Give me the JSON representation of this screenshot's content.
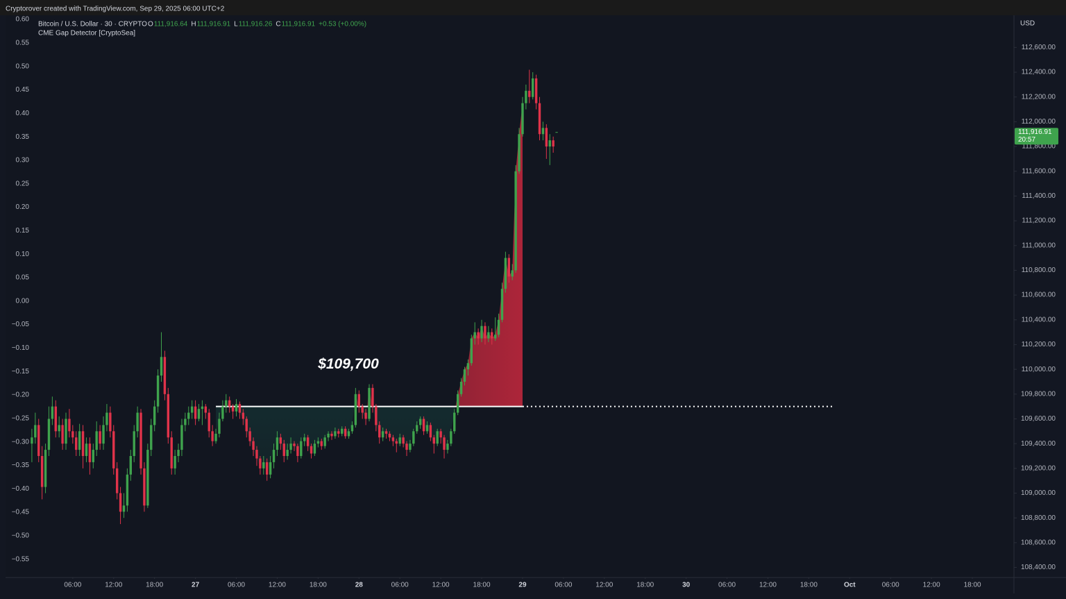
{
  "header": "Cryptorover created with TradingView.com, Sep 29, 2025 06:00 UTC+2",
  "chart_data": {
    "type": "candlestick",
    "symbol": "Bitcoin / U.S. Dollar · 30 · CRYPTO",
    "indicator": "CME Gap Detector [CryptoSea]",
    "ohlc_legend": [
      {
        "key": "O",
        "text": "111,916.64"
      },
      {
        "key": "H",
        "text": "111,916.91"
      },
      {
        "key": "L",
        "text": "111,916.26"
      },
      {
        "key": "C",
        "text": "111,916.91"
      }
    ],
    "change": "+0.53 (+0.00%)",
    "currency": "USD",
    "last_price_label": "111,916.91",
    "countdown": "20:57",
    "up_color": "#3fa34d",
    "down_color": "#e0334a",
    "xlim": [
      -1,
      288
    ],
    "xticks": [
      {
        "value": 12,
        "label": "06:00"
      },
      {
        "value": 24,
        "label": "12:00"
      },
      {
        "value": 36,
        "label": "18:00"
      },
      {
        "value": 48,
        "label": "27"
      },
      {
        "value": 60,
        "label": "06:00"
      },
      {
        "value": 72,
        "label": "12:00"
      },
      {
        "value": 84,
        "label": "18:00"
      },
      {
        "value": 96,
        "label": "28"
      },
      {
        "value": 108,
        "label": "06:00"
      },
      {
        "value": 120,
        "label": "12:00"
      },
      {
        "value": 132,
        "label": "18:00"
      },
      {
        "value": 144,
        "label": "29"
      },
      {
        "value": 156,
        "label": "06:00"
      },
      {
        "value": 168,
        "label": "12:00"
      },
      {
        "value": 180,
        "label": "18:00"
      },
      {
        "value": 192,
        "label": "30"
      },
      {
        "value": 204,
        "label": "06:00"
      },
      {
        "value": 216,
        "label": "12:00"
      },
      {
        "value": 228,
        "label": "18:00"
      },
      {
        "value": 240,
        "label": "Oct"
      },
      {
        "value": 252,
        "label": "06:00"
      },
      {
        "value": 264,
        "label": "12:00"
      },
      {
        "value": 276,
        "label": "18:00"
      }
    ],
    "ylim": [
      108330,
      112860
    ],
    "yticks": [
      {
        "value": 112600,
        "label": "112,600.00"
      },
      {
        "value": 112400,
        "label": "112,400.00"
      },
      {
        "value": 112200,
        "label": "112,200.00"
      },
      {
        "value": 112000,
        "label": "112,000.00"
      },
      {
        "value": 111800,
        "label": "111,800.00"
      },
      {
        "value": 111600,
        "label": "111,600.00"
      },
      {
        "value": 111400,
        "label": "111,400.00"
      },
      {
        "value": 111200,
        "label": "111,200.00"
      },
      {
        "value": 111000,
        "label": "111,000.00"
      },
      {
        "value": 110800,
        "label": "110,800.00"
      },
      {
        "value": 110600,
        "label": "110,600.00"
      },
      {
        "value": 110400,
        "label": "110,400.00"
      },
      {
        "value": 110200,
        "label": "110,200.00"
      },
      {
        "value": 110000,
        "label": "110,000.00"
      },
      {
        "value": 109800,
        "label": "109,800.00"
      },
      {
        "value": 109600,
        "label": "109,600.00"
      },
      {
        "value": 109400,
        "label": "109,400.00"
      },
      {
        "value": 109200,
        "label": "109,200.00"
      },
      {
        "value": 109000,
        "label": "109,000.00"
      },
      {
        "value": 108800,
        "label": "108,800.00"
      },
      {
        "value": 108600,
        "label": "108,600.00"
      },
      {
        "value": 108400,
        "label": "108,400.00"
      }
    ],
    "y2lim": [
      -0.586,
      0.609
    ],
    "y2ticks": [
      {
        "value": 0.6,
        "label": "0.60"
      },
      0.55,
      {
        "value": 0.5,
        "label": "0.50"
      },
      0.45,
      {
        "value": 0.4,
        "label": "0.40"
      },
      0.35,
      {
        "value": 0.3,
        "label": "0.30"
      },
      0.25,
      {
        "value": 0.2,
        "label": "0.20"
      },
      0.15,
      {
        "value": 0.1,
        "label": "0.10"
      },
      0.05,
      {
        "value": 0,
        "label": "0.00"
      },
      {
        "value": -0.05,
        "label": "−0.05"
      },
      {
        "value": -0.1,
        "label": "−0.10"
      },
      {
        "value": -0.15,
        "label": "−0.15"
      },
      {
        "value": -0.2,
        "label": "−0.20"
      },
      {
        "value": -0.25,
        "label": "−0.25"
      },
      {
        "value": -0.3,
        "label": "−0.30"
      },
      {
        "value": -0.35,
        "label": "−0.35"
      },
      {
        "value": -0.4,
        "label": "−0.40"
      },
      {
        "value": -0.45,
        "label": "−0.45"
      },
      {
        "value": -0.5,
        "label": "−0.50"
      },
      {
        "value": -0.55,
        "label": "−0.55"
      }
    ],
    "annotations": [
      {
        "label": "$109,700",
        "value": 109700
      }
    ],
    "candles": [
      [
        109400,
        109520,
        109250,
        109450
      ],
      [
        109450,
        109650,
        109400,
        109550
      ],
      [
        109550,
        109600,
        109250,
        109300
      ],
      [
        109300,
        109380,
        108950,
        109050
      ],
      [
        109050,
        109400,
        109000,
        109350
      ],
      [
        109350,
        109700,
        109300,
        109600
      ],
      [
        109600,
        109780,
        109550,
        109700
      ],
      [
        109700,
        109750,
        109450,
        109500
      ],
      [
        109500,
        109620,
        109450,
        109550
      ],
      [
        109550,
        109600,
        109350,
        109400
      ],
      [
        109400,
        109650,
        109350,
        109600
      ],
      [
        109600,
        109680,
        109450,
        109500
      ],
      [
        109500,
        109550,
        109400,
        109450
      ],
      [
        109450,
        109500,
        109300,
        109350
      ],
      [
        109350,
        109560,
        109300,
        109500
      ],
      [
        109500,
        109550,
        109200,
        109300
      ],
      [
        109300,
        109450,
        109250,
        109400
      ],
      [
        109400,
        109450,
        109150,
        109250
      ],
      [
        109250,
        109400,
        109200,
        109350
      ],
      [
        109350,
        109580,
        109300,
        109500
      ],
      [
        109500,
        109550,
        109350,
        109400
      ],
      [
        109400,
        109620,
        109350,
        109550
      ],
      [
        109550,
        109720,
        109500,
        109650
      ],
      [
        109650,
        109700,
        109450,
        109500
      ],
      [
        109500,
        109550,
        109150,
        109200
      ],
      [
        109200,
        109250,
        108950,
        109000
      ],
      [
        109000,
        109050,
        108750,
        108850
      ],
      [
        108850,
        109000,
        108800,
        108900
      ],
      [
        108900,
        109200,
        108850,
        109150
      ],
      [
        109150,
        109350,
        109100,
        109300
      ],
      [
        109300,
        109550,
        109250,
        109500
      ],
      [
        109500,
        109700,
        109450,
        109650
      ],
      [
        109650,
        109680,
        109150,
        109200
      ],
      [
        109200,
        109250,
        108850,
        108900
      ],
      [
        108900,
        109400,
        108880,
        109350
      ],
      [
        109350,
        109600,
        109300,
        109550
      ],
      [
        109550,
        109750,
        109500,
        109700
      ],
      [
        109700,
        110000,
        109650,
        109950
      ],
      [
        109950,
        110300,
        109900,
        110100
      ],
      [
        110100,
        110150,
        109750,
        109800
      ],
      [
        109800,
        109850,
        109400,
        109450
      ],
      [
        109450,
        109500,
        109150,
        109200
      ],
      [
        109200,
        109350,
        109150,
        109300
      ],
      [
        109300,
        109400,
        109250,
        109350
      ],
      [
        109350,
        109600,
        109300,
        109550
      ],
      [
        109550,
        109650,
        109500,
        109600
      ],
      [
        109600,
        109700,
        109550,
        109650
      ],
      [
        109650,
        109750,
        109600,
        109700
      ],
      [
        109700,
        109750,
        109550,
        109600
      ],
      [
        109600,
        109720,
        109580,
        109680
      ],
      [
        109680,
        109750,
        109550,
        109700
      ],
      [
        109700,
        109720,
        109600,
        109650
      ],
      [
        109650,
        109680,
        109450,
        109500
      ],
      [
        109500,
        109550,
        109380,
        109420
      ],
      [
        109420,
        109520,
        109400,
        109480
      ],
      [
        109480,
        109650,
        109450,
        109600
      ],
      [
        109600,
        109750,
        109580,
        109700
      ],
      [
        109700,
        109800,
        109650,
        109750
      ],
      [
        109750,
        109780,
        109650,
        109700
      ],
      [
        109700,
        109720,
        109600,
        109660
      ],
      [
        109660,
        109760,
        109620,
        109720
      ],
      [
        109720,
        109740,
        109600,
        109650
      ],
      [
        109650,
        109680,
        109550,
        109600
      ],
      [
        109600,
        109620,
        109450,
        109500
      ],
      [
        109500,
        109530,
        109380,
        109420
      ],
      [
        109420,
        109450,
        109300,
        109350
      ],
      [
        109350,
        109380,
        109220,
        109280
      ],
      [
        109280,
        109300,
        109150,
        109200
      ],
      [
        109200,
        109300,
        109150,
        109250
      ],
      [
        109250,
        109280,
        109100,
        109150
      ],
      [
        109150,
        109300,
        109120,
        109250
      ],
      [
        109250,
        109400,
        109200,
        109350
      ],
      [
        109350,
        109500,
        109300,
        109450
      ],
      [
        109450,
        109480,
        109350,
        109400
      ],
      [
        109400,
        109430,
        109250,
        109300
      ],
      [
        109300,
        109400,
        109270,
        109350
      ],
      [
        109350,
        109450,
        109320,
        109400
      ],
      [
        109400,
        109420,
        109340,
        109380
      ],
      [
        109380,
        109400,
        109250,
        109300
      ],
      [
        109300,
        109450,
        109280,
        109420
      ],
      [
        109420,
        109480,
        109380,
        109450
      ],
      [
        109450,
        109470,
        109340,
        109380
      ],
      [
        109380,
        109400,
        109280,
        109320
      ],
      [
        109320,
        109430,
        109300,
        109400
      ],
      [
        109400,
        109450,
        109370,
        109420
      ],
      [
        109420,
        109440,
        109350,
        109380
      ],
      [
        109380,
        109470,
        109360,
        109450
      ],
      [
        109450,
        109500,
        109420,
        109480
      ],
      [
        109480,
        109500,
        109430,
        109460
      ],
      [
        109460,
        109530,
        109440,
        109500
      ],
      [
        109500,
        109520,
        109450,
        109480
      ],
      [
        109480,
        109540,
        109460,
        109520
      ],
      [
        109520,
        109540,
        109440,
        109460
      ],
      [
        109460,
        109520,
        109440,
        109500
      ],
      [
        109500,
        109580,
        109480,
        109550
      ],
      [
        109550,
        109850,
        109530,
        109800
      ],
      [
        109800,
        109830,
        109650,
        109700
      ],
      [
        109700,
        109720,
        109600,
        109650
      ],
      [
        109650,
        109680,
        109550,
        109600
      ],
      [
        109600,
        109880,
        109580,
        109850
      ],
      [
        109850,
        109880,
        109650,
        109700
      ],
      [
        109700,
        109720,
        109500,
        109550
      ],
      [
        109550,
        109580,
        109400,
        109450
      ],
      [
        109450,
        109530,
        109420,
        109500
      ],
      [
        109500,
        109520,
        109440,
        109480
      ],
      [
        109480,
        109500,
        109420,
        109450
      ],
      [
        109450,
        109470,
        109380,
        109420
      ],
      [
        109420,
        109440,
        109330,
        109400
      ],
      [
        109400,
        109480,
        109380,
        109450
      ],
      [
        109450,
        109470,
        109370,
        109400
      ],
      [
        109400,
        109420,
        109300,
        109350
      ],
      [
        109350,
        109430,
        109330,
        109400
      ],
      [
        109400,
        109520,
        109380,
        109500
      ],
      [
        109500,
        109580,
        109480,
        109550
      ],
      [
        109550,
        109620,
        109520,
        109600
      ],
      [
        109600,
        109620,
        109470,
        109500
      ],
      [
        109500,
        109580,
        109480,
        109550
      ],
      [
        109550,
        109570,
        109420,
        109450
      ],
      [
        109450,
        109470,
        109320,
        109400
      ],
      [
        109400,
        109520,
        109380,
        109500
      ],
      [
        109500,
        109520,
        109400,
        109450
      ],
      [
        109450,
        109470,
        109280,
        109350
      ],
      [
        109350,
        109430,
        109320,
        109400
      ],
      [
        109400,
        109520,
        109380,
        109500
      ],
      [
        109500,
        109680,
        109480,
        109650
      ],
      [
        109650,
        109830,
        109630,
        109800
      ],
      [
        109800,
        109930,
        109780,
        109900
      ],
      [
        109900,
        110020,
        109870,
        110000
      ],
      [
        110000,
        110080,
        109950,
        110050
      ],
      [
        110050,
        110280,
        110030,
        110250
      ],
      [
        110250,
        110380,
        110200,
        110300
      ],
      [
        110300,
        110330,
        110200,
        110250
      ],
      [
        110250,
        110400,
        110220,
        110350
      ],
      [
        110350,
        110380,
        110200,
        110250
      ],
      [
        110250,
        110350,
        110220,
        110300
      ],
      [
        110300,
        110330,
        110200,
        110250
      ],
      [
        110250,
        110420,
        110230,
        110280
      ],
      [
        110280,
        110450,
        110260,
        110400
      ],
      [
        110400,
        110700,
        110380,
        110650
      ],
      [
        110650,
        110950,
        110620,
        110900
      ],
      [
        110900,
        110930,
        110700,
        110750
      ],
      [
        110750,
        110850,
        110720,
        110800
      ],
      [
        110800,
        111650,
        110780,
        111600
      ],
      [
        111600,
        111950,
        111580,
        111900
      ],
      [
        111900,
        112200,
        111880,
        112150
      ],
      [
        112150,
        112300,
        112100,
        112250
      ],
      [
        112250,
        112420,
        112150,
        112200
      ],
      [
        112200,
        112400,
        112180,
        112350
      ],
      [
        112350,
        112380,
        112100,
        112150
      ],
      [
        112150,
        112200,
        111850,
        111900
      ],
      [
        111900,
        112000,
        111850,
        111950
      ],
      [
        111950,
        111980,
        111700,
        111800
      ],
      [
        111800,
        111900,
        111650,
        111850
      ],
      [
        111850,
        111880,
        111750,
        111800
      ],
      [
        111916.64,
        111916.91,
        111916.26,
        111916.91
      ]
    ]
  }
}
